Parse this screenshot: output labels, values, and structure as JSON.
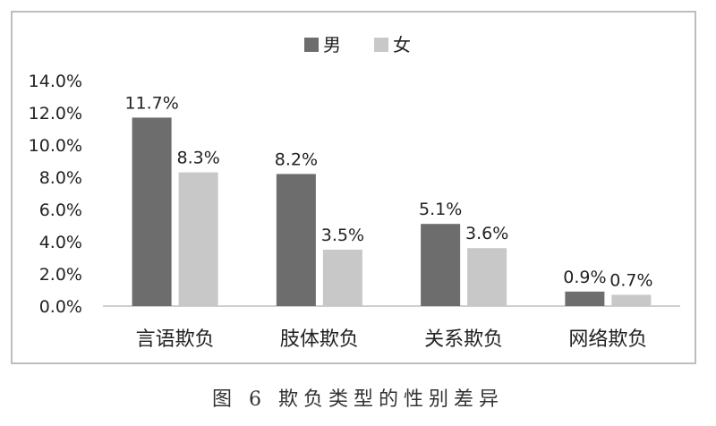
{
  "caption": "图 6   欺负类型的性别差异",
  "chart_data": {
    "type": "bar",
    "categories": [
      "言语欺负",
      "肢体欺负",
      "关系欺负",
      "网络欺负"
    ],
    "series": [
      {
        "name": "男",
        "values": [
          11.7,
          8.2,
          5.1,
          0.9
        ],
        "labels": [
          "11.7%",
          "8.2%",
          "5.1%",
          "0.9%"
        ],
        "color": "#6d6d6d"
      },
      {
        "name": "女",
        "values": [
          8.3,
          3.5,
          3.6,
          0.7
        ],
        "labels": [
          "8.3%",
          "3.5%",
          "3.6%",
          "0.7%"
        ],
        "color": "#c8c8c8"
      }
    ],
    "ylim": [
      0,
      14
    ],
    "yticks": [
      "0.0%",
      "2.0%",
      "4.0%",
      "6.0%",
      "8.0%",
      "10.0%",
      "12.0%",
      "14.0%"
    ],
    "legend_position": "top-center",
    "grid": false
  }
}
